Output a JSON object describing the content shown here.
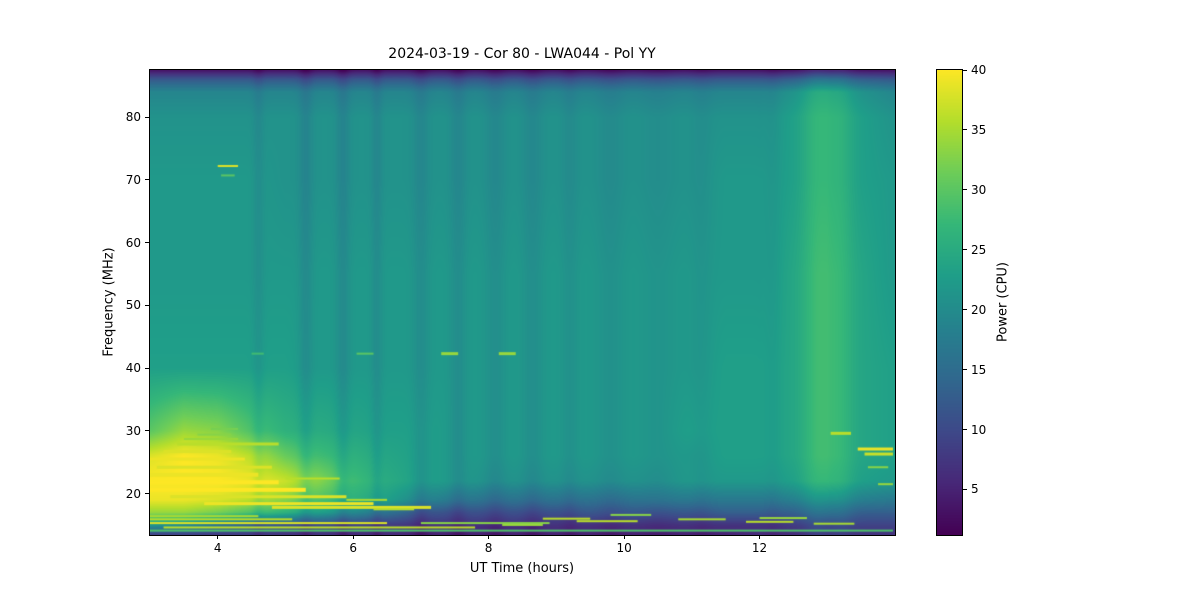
{
  "chart_data": {
    "type": "heatmap",
    "title": "2024-03-19 - Cor 80 - LWA044 - Pol YY",
    "xlabel": "UT Time (hours)",
    "ylabel": "Frequency (MHz)",
    "colorbar_label": "Power (CPU)",
    "colormap": "viridis",
    "legend_position": "colorbar-right",
    "grid": false,
    "xlim": [
      3,
      14
    ],
    "ylim": [
      13.4,
      87.5
    ],
    "clim": [
      1.2,
      40
    ],
    "x_ticks": [
      4,
      6,
      8,
      10,
      12
    ],
    "y_ticks": [
      20,
      30,
      40,
      50,
      60,
      70,
      80
    ],
    "colorbar_ticks": [
      5,
      10,
      15,
      20,
      25,
      30,
      35,
      40
    ],
    "grid_x_hours": [
      3,
      3.5,
      4,
      4.5,
      5,
      5.5,
      6,
      6.5,
      7,
      7.5,
      8,
      8.5,
      9,
      9.5,
      10,
      10.5,
      11,
      11.5,
      12,
      12.5,
      13,
      13.5,
      14
    ],
    "grid_freq_mhz": [
      13.5,
      15,
      17,
      19,
      22,
      26,
      30,
      40,
      55,
      70,
      80,
      84,
      86,
      87.5
    ],
    "grid_power": [
      [
        9,
        9,
        8,
        8,
        7,
        7,
        6,
        6,
        5,
        5,
        5,
        5,
        5,
        5,
        5,
        5,
        5,
        5,
        6,
        6,
        6,
        7,
        7
      ],
      [
        22,
        20,
        16,
        13,
        11,
        10,
        9,
        8,
        7,
        7,
        7,
        7,
        7,
        7,
        7,
        7,
        7,
        7,
        7,
        8,
        8,
        9,
        9
      ],
      [
        34,
        34,
        32,
        29,
        26,
        23,
        20,
        16,
        12,
        11,
        11,
        11,
        11,
        12,
        12,
        12,
        12,
        13,
        13,
        13,
        14,
        13,
        13
      ],
      [
        39,
        39,
        38,
        36,
        33,
        29,
        26,
        23,
        19,
        17,
        16,
        16,
        16,
        16,
        16,
        17,
        17,
        17,
        17,
        18,
        19,
        18,
        17
      ],
      [
        40,
        40,
        40,
        39,
        37,
        33,
        28,
        25,
        23,
        22,
        21,
        21,
        21,
        21,
        21,
        21,
        22,
        22,
        22,
        23,
        25,
        23,
        22
      ],
      [
        38,
        40,
        39,
        36,
        31,
        28,
        26,
        24,
        23,
        22,
        22,
        22,
        22,
        22,
        22,
        22,
        22,
        23,
        23,
        24,
        26,
        24,
        23
      ],
      [
        30,
        34,
        33,
        29,
        26,
        25,
        24,
        23,
        23,
        22,
        22,
        22,
        22,
        22,
        22,
        22,
        23,
        23,
        23,
        24,
        26,
        24,
        23
      ],
      [
        23,
        23,
        23,
        23,
        23,
        22,
        22,
        22,
        22,
        22,
        22,
        22,
        22,
        22,
        22,
        22,
        22,
        23,
        23,
        24,
        26,
        24,
        23
      ],
      [
        22,
        22,
        22,
        22,
        22,
        22,
        22,
        22,
        22,
        22,
        22,
        22,
        22,
        22,
        22,
        22,
        22,
        22,
        22,
        24,
        26,
        24,
        22
      ],
      [
        22,
        22,
        22,
        22,
        21,
        21,
        21,
        21,
        21,
        21,
        21,
        21,
        21,
        21,
        21,
        21,
        21,
        22,
        22,
        23,
        25,
        23,
        22
      ],
      [
        21,
        21,
        21,
        21,
        21,
        21,
        21,
        21,
        21,
        21,
        21,
        21,
        21,
        21,
        21,
        21,
        21,
        21,
        21,
        23,
        25,
        23,
        21
      ],
      [
        19,
        19,
        19,
        19,
        19,
        19,
        19,
        19,
        19,
        19,
        19,
        19,
        19,
        19,
        19,
        19,
        19,
        19,
        19,
        21,
        23,
        21,
        19
      ],
      [
        12,
        12,
        12,
        12,
        12,
        12,
        12,
        12,
        12,
        12,
        12,
        12,
        12,
        12,
        12,
        12,
        12,
        12,
        12,
        13,
        14,
        13,
        12
      ],
      [
        3,
        3,
        3,
        3,
        3,
        3,
        3,
        3,
        3,
        3,
        3,
        3,
        3,
        3,
        3,
        3,
        3,
        3,
        3,
        3,
        3,
        3,
        3
      ]
    ],
    "stripes": [
      {
        "t": 4.6,
        "w": 0.08,
        "d": -1.5
      },
      {
        "t": 5.3,
        "w": 0.1,
        "d": -2.2
      },
      {
        "t": 5.85,
        "w": 0.1,
        "d": -2.2
      },
      {
        "t": 6.35,
        "w": 0.08,
        "d": -1.8
      },
      {
        "t": 7.0,
        "w": 0.12,
        "d": -1.8
      },
      {
        "t": 7.55,
        "w": 0.12,
        "d": -1.8
      },
      {
        "t": 8.1,
        "w": 0.15,
        "d": -1.6
      },
      {
        "t": 8.65,
        "w": 0.15,
        "d": -1.6
      },
      {
        "t": 9.2,
        "w": 0.12,
        "d": -1.2
      },
      {
        "t": 9.8,
        "w": 0.2,
        "d": -1.2
      },
      {
        "t": 10.5,
        "w": 0.25,
        "d": -0.8
      },
      {
        "t": 11.15,
        "w": 0.15,
        "d": -0.8
      },
      {
        "t": 12.2,
        "w": 0.12,
        "d": -0.8
      },
      {
        "t": 12.85,
        "w": 0.22,
        "d": 2.5
      },
      {
        "t": 13.2,
        "w": 0.18,
        "d": 1.8
      }
    ],
    "rfi_lines": [
      {
        "f": 72.2,
        "t0": 4.0,
        "t1": 4.3,
        "p": 38,
        "h": 2
      },
      {
        "f": 70.7,
        "t0": 4.05,
        "t1": 4.25,
        "p": 30,
        "h": 2
      },
      {
        "f": 42.3,
        "t0": 4.5,
        "t1": 4.68,
        "p": 28,
        "h": 2
      },
      {
        "f": 42.3,
        "t0": 6.05,
        "t1": 6.3,
        "p": 30,
        "h": 2
      },
      {
        "f": 42.3,
        "t0": 7.3,
        "t1": 7.55,
        "p": 34,
        "h": 3
      },
      {
        "f": 42.3,
        "t0": 8.15,
        "t1": 8.4,
        "p": 34,
        "h": 3
      },
      {
        "f": 29.6,
        "t0": 13.05,
        "t1": 13.35,
        "p": 36,
        "h": 3
      },
      {
        "f": 27.1,
        "t0": 13.45,
        "t1": 13.97,
        "p": 39,
        "h": 3
      },
      {
        "f": 26.3,
        "t0": 13.55,
        "t1": 13.97,
        "p": 37,
        "h": 3
      },
      {
        "f": 24.2,
        "t0": 13.6,
        "t1": 13.9,
        "p": 33,
        "h": 2
      },
      {
        "f": 21.5,
        "t0": 13.75,
        "t1": 13.97,
        "p": 34,
        "h": 2
      },
      {
        "f": 17.8,
        "t0": 4.8,
        "t1": 7.15,
        "p": 38,
        "h": 3
      },
      {
        "f": 18.4,
        "t0": 3.8,
        "t1": 6.3,
        "p": 39,
        "h": 3
      },
      {
        "f": 19.5,
        "t0": 3.3,
        "t1": 5.9,
        "p": 38,
        "h": 3
      },
      {
        "f": 20.6,
        "t0": 3.0,
        "t1": 5.3,
        "p": 40,
        "h": 4
      },
      {
        "f": 21.8,
        "t0": 3.0,
        "t1": 4.9,
        "p": 40,
        "h": 4
      },
      {
        "f": 23.0,
        "t0": 3.0,
        "t1": 4.6,
        "p": 39,
        "h": 4
      },
      {
        "f": 24.2,
        "t0": 3.1,
        "t1": 4.8,
        "p": 38,
        "h": 3
      },
      {
        "f": 25.5,
        "t0": 3.0,
        "t1": 4.4,
        "p": 39,
        "h": 3
      },
      {
        "f": 26.7,
        "t0": 3.2,
        "t1": 4.2,
        "p": 38,
        "h": 3
      },
      {
        "f": 27.9,
        "t0": 3.4,
        "t1": 4.9,
        "p": 36,
        "h": 3
      },
      {
        "f": 28.7,
        "t0": 3.5,
        "t1": 4.3,
        "p": 34,
        "h": 2
      },
      {
        "f": 29.4,
        "t0": 3.7,
        "t1": 4.2,
        "p": 33,
        "h": 2
      },
      {
        "f": 30.3,
        "t0": 3.9,
        "t1": 4.3,
        "p": 32,
        "h": 2
      },
      {
        "f": 22.4,
        "t0": 5.0,
        "t1": 5.8,
        "p": 36,
        "h": 2
      },
      {
        "f": 19.0,
        "t0": 5.9,
        "t1": 6.5,
        "p": 35,
        "h": 2
      },
      {
        "f": 17.5,
        "t0": 6.3,
        "t1": 6.9,
        "p": 36,
        "h": 2
      },
      {
        "f": 15.3,
        "t0": 3.0,
        "t1": 6.5,
        "p": 38,
        "h": 2
      },
      {
        "f": 15.3,
        "t0": 7.0,
        "t1": 8.9,
        "p": 33,
        "h": 2
      },
      {
        "f": 15.9,
        "t0": 3.0,
        "t1": 5.1,
        "p": 36,
        "h": 2
      },
      {
        "f": 14.6,
        "t0": 3.2,
        "t1": 7.8,
        "p": 36,
        "h": 2
      },
      {
        "f": 14.1,
        "t0": 3.0,
        "t1": 13.97,
        "p": 29,
        "h": 2
      },
      {
        "f": 16.4,
        "t0": 3.0,
        "t1": 4.6,
        "p": 35,
        "h": 2
      },
      {
        "f": 16.0,
        "t0": 8.8,
        "t1": 9.5,
        "p": 36,
        "h": 2
      },
      {
        "f": 15.6,
        "t0": 9.3,
        "t1": 10.2,
        "p": 36,
        "h": 2
      },
      {
        "f": 15.9,
        "t0": 10.8,
        "t1": 11.5,
        "p": 35,
        "h": 2
      },
      {
        "f": 15.5,
        "t0": 11.8,
        "t1": 12.5,
        "p": 36,
        "h": 2
      },
      {
        "f": 16.1,
        "t0": 12.0,
        "t1": 12.7,
        "p": 34,
        "h": 2
      },
      {
        "f": 15.2,
        "t0": 12.8,
        "t1": 13.4,
        "p": 35,
        "h": 2
      },
      {
        "f": 16.6,
        "t0": 9.8,
        "t1": 10.4,
        "p": 33,
        "h": 2
      },
      {
        "f": 15.0,
        "t0": 8.2,
        "t1": 8.8,
        "p": 34,
        "h": 2
      }
    ],
    "viridis_stops": [
      [
        68,
        1,
        84
      ],
      [
        72,
        40,
        120
      ],
      [
        62,
        73,
        137
      ],
      [
        49,
        104,
        142
      ],
      [
        38,
        130,
        142
      ],
      [
        31,
        158,
        137
      ],
      [
        53,
        183,
        121
      ],
      [
        109,
        205,
        89
      ],
      [
        180,
        222,
        44
      ],
      [
        253,
        231,
        37
      ]
    ]
  }
}
